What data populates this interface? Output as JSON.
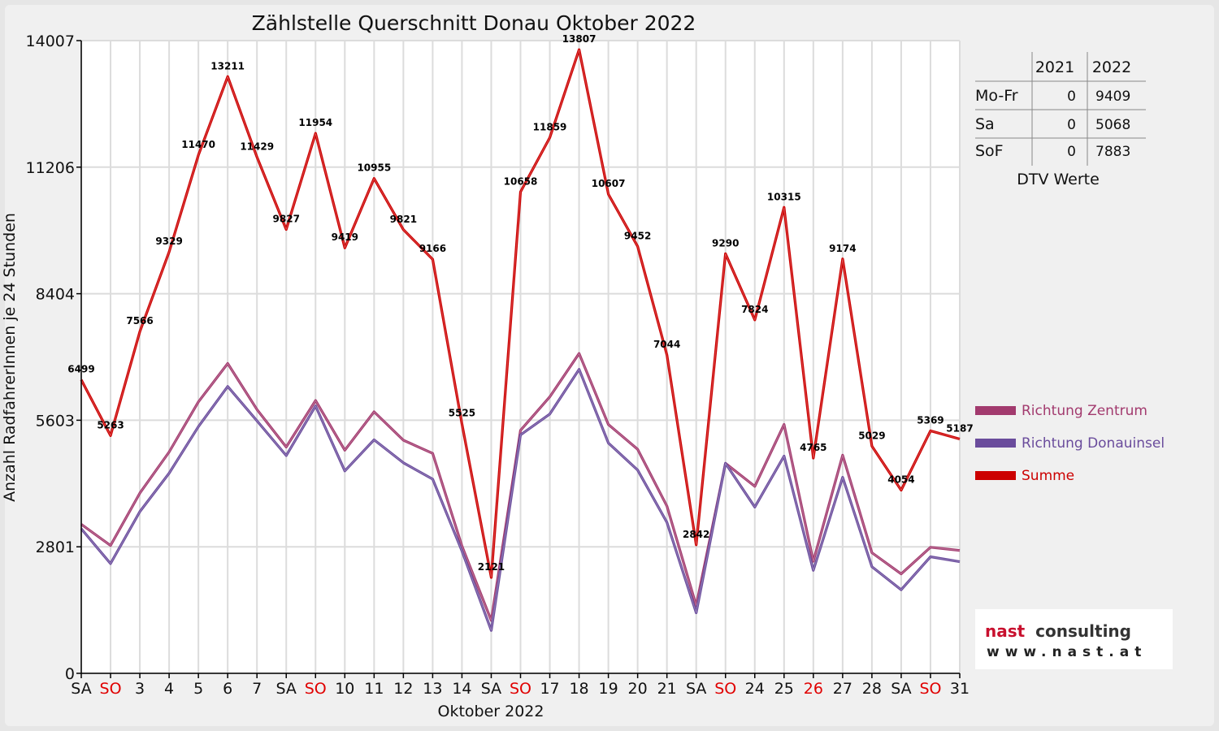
{
  "title": "Zählstelle Querschnitt Donau Oktober 2022",
  "ylabel": "Anzahl RadfahrerInnen je 24 Stunden",
  "xlabel": "Oktober 2022",
  "chart_data": {
    "type": "line",
    "title": "Zählstelle Querschnitt Donau Oktober 2022",
    "xlabel": "Oktober 2022",
    "ylabel": "Anzahl RadfahrerInnen je 24 Stunden",
    "ylim": [
      0,
      14007
    ],
    "yticks": [
      "0",
      "2801",
      "5603",
      "8404",
      "11206",
      "14007"
    ],
    "grid": true,
    "legend_position": "right",
    "categories": [
      "SA",
      "SO",
      "3",
      "4",
      "5",
      "6",
      "7",
      "SA",
      "SO",
      "10",
      "11",
      "12",
      "13",
      "14",
      "SA",
      "SO",
      "17",
      "18",
      "19",
      "20",
      "21",
      "SA",
      "SO",
      "24",
      "25",
      "26",
      "27",
      "28",
      "SA",
      "SO",
      "31"
    ],
    "category_colors": [
      "#111111",
      "#e00000",
      "#111111",
      "#111111",
      "#111111",
      "#111111",
      "#111111",
      "#111111",
      "#e00000",
      "#111111",
      "#111111",
      "#111111",
      "#111111",
      "#111111",
      "#111111",
      "#e00000",
      "#111111",
      "#111111",
      "#111111",
      "#111111",
      "#111111",
      "#111111",
      "#e00000",
      "#111111",
      "#111111",
      "#e00000",
      "#111111",
      "#111111",
      "#111111",
      "#e00000",
      "#111111"
    ],
    "series": [
      {
        "name": "Richtung Zentrum",
        "color": "#a23a6e",
        "values": [
          3300,
          2830,
          3990,
          4900,
          6010,
          6860,
          5840,
          5010,
          6040,
          4940,
          5790,
          5160,
          4870,
          2820,
          1170,
          5380,
          6120,
          7080,
          5510,
          4960,
          3700,
          1500,
          4650,
          4140,
          5510,
          2480,
          4830,
          2670,
          2200,
          2790,
          2720
        ]
      },
      {
        "name": "Richtung Donauinsel",
        "color": "#6a4c9c",
        "values": [
          3200,
          2430,
          3580,
          4430,
          5460,
          6350,
          5590,
          4820,
          5920,
          4480,
          5170,
          4660,
          4300,
          2710,
          950,
          5280,
          5740,
          6730,
          5100,
          4500,
          3340,
          1340,
          4650,
          3680,
          4810,
          2280,
          4340,
          2360,
          1850,
          2580,
          2470
        ]
      },
      {
        "name": "Summe",
        "color": "#cc0000",
        "values": [
          6499,
          5263,
          7566,
          9329,
          11470,
          13211,
          11429,
          9827,
          11954,
          9419,
          10955,
          9821,
          9166,
          5525,
          2121,
          10658,
          11859,
          13807,
          10607,
          9452,
          7044,
          2842,
          9290,
          7824,
          10315,
          4765,
          9174,
          5029,
          4054,
          5369,
          5187
        ]
      }
    ],
    "data_labels": [
      "6499",
      "5263",
      "7566",
      "9329",
      "11470",
      "13211",
      "11429",
      "9827",
      "11954",
      "9419",
      "10955",
      "9821",
      "9166",
      "5525",
      "2121",
      "10658",
      "11859",
      "13807",
      "10607",
      "9452",
      "7044",
      "2842",
      "9290",
      "7824",
      "10315",
      "4765",
      "9174",
      "5029",
      "4054",
      "5369",
      "5187"
    ]
  },
  "dtv_table": {
    "headers": [
      "",
      "2021",
      "2022"
    ],
    "rows": [
      {
        "label": "Mo-Fr",
        "v2021": "0",
        "v2022": "9409"
      },
      {
        "label": "Sa",
        "v2021": "0",
        "v2022": "5068"
      },
      {
        "label": "SoF",
        "v2021": "0",
        "v2022": "7883"
      }
    ],
    "caption": "DTV Werte"
  },
  "legend": [
    {
      "label": "Richtung Zentrum",
      "color": "#a23a6e"
    },
    {
      "label": "Richtung Donauinsel",
      "color": "#6a4c9c"
    },
    {
      "label": "Summe",
      "color": "#cc0000"
    }
  ],
  "logo": {
    "main_left": "nast",
    "main_right": "consulting",
    "sub": "www.nast.at",
    "accent": "#c8102e"
  }
}
